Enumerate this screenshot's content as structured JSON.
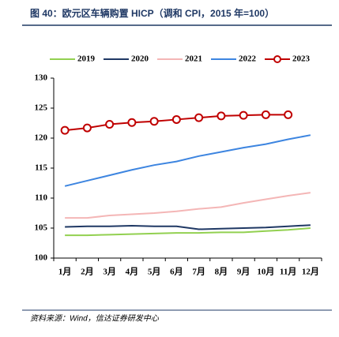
{
  "chart_data": {
    "type": "line",
    "title": "图 40：欧元区车辆购置 HICP（调和 CPI，2015 年=100）",
    "source": "资料来源：Wind，信达证券研发中心",
    "categories": [
      "1月",
      "2月",
      "3月",
      "4月",
      "5月",
      "6月",
      "7月",
      "8月",
      "9月",
      "10月",
      "11月",
      "12月"
    ],
    "series": [
      {
        "name": "2019",
        "color": "#92d050",
        "values": [
          103.8,
          103.8,
          103.9,
          104.0,
          104.1,
          104.2,
          104.2,
          104.3,
          104.3,
          104.5,
          104.7,
          105.0
        ]
      },
      {
        "name": "2020",
        "color": "#1f3864",
        "values": [
          105.2,
          105.3,
          105.3,
          105.4,
          105.3,
          105.3,
          104.8,
          104.9,
          105.0,
          105.1,
          105.3,
          105.5
        ]
      },
      {
        "name": "2021",
        "color": "#f4b6b6",
        "values": [
          106.7,
          106.7,
          107.1,
          107.3,
          107.5,
          107.8,
          108.2,
          108.5,
          109.2,
          109.8,
          110.4,
          110.9
        ]
      },
      {
        "name": "2022",
        "color": "#3d85e0",
        "values": [
          112.0,
          112.9,
          113.8,
          114.7,
          115.5,
          116.1,
          117.0,
          117.7,
          118.4,
          119.0,
          119.8,
          120.5
        ]
      },
      {
        "name": "2023",
        "color": "#c00000",
        "marker": "circle",
        "values": [
          121.3,
          121.7,
          122.3,
          122.6,
          122.8,
          123.1,
          123.4,
          123.7,
          123.8,
          123.9,
          123.9,
          null
        ]
      }
    ],
    "ylim": [
      100,
      130
    ],
    "yticks": [
      100,
      105,
      110,
      115,
      120,
      125,
      130
    ],
    "grid": false
  }
}
